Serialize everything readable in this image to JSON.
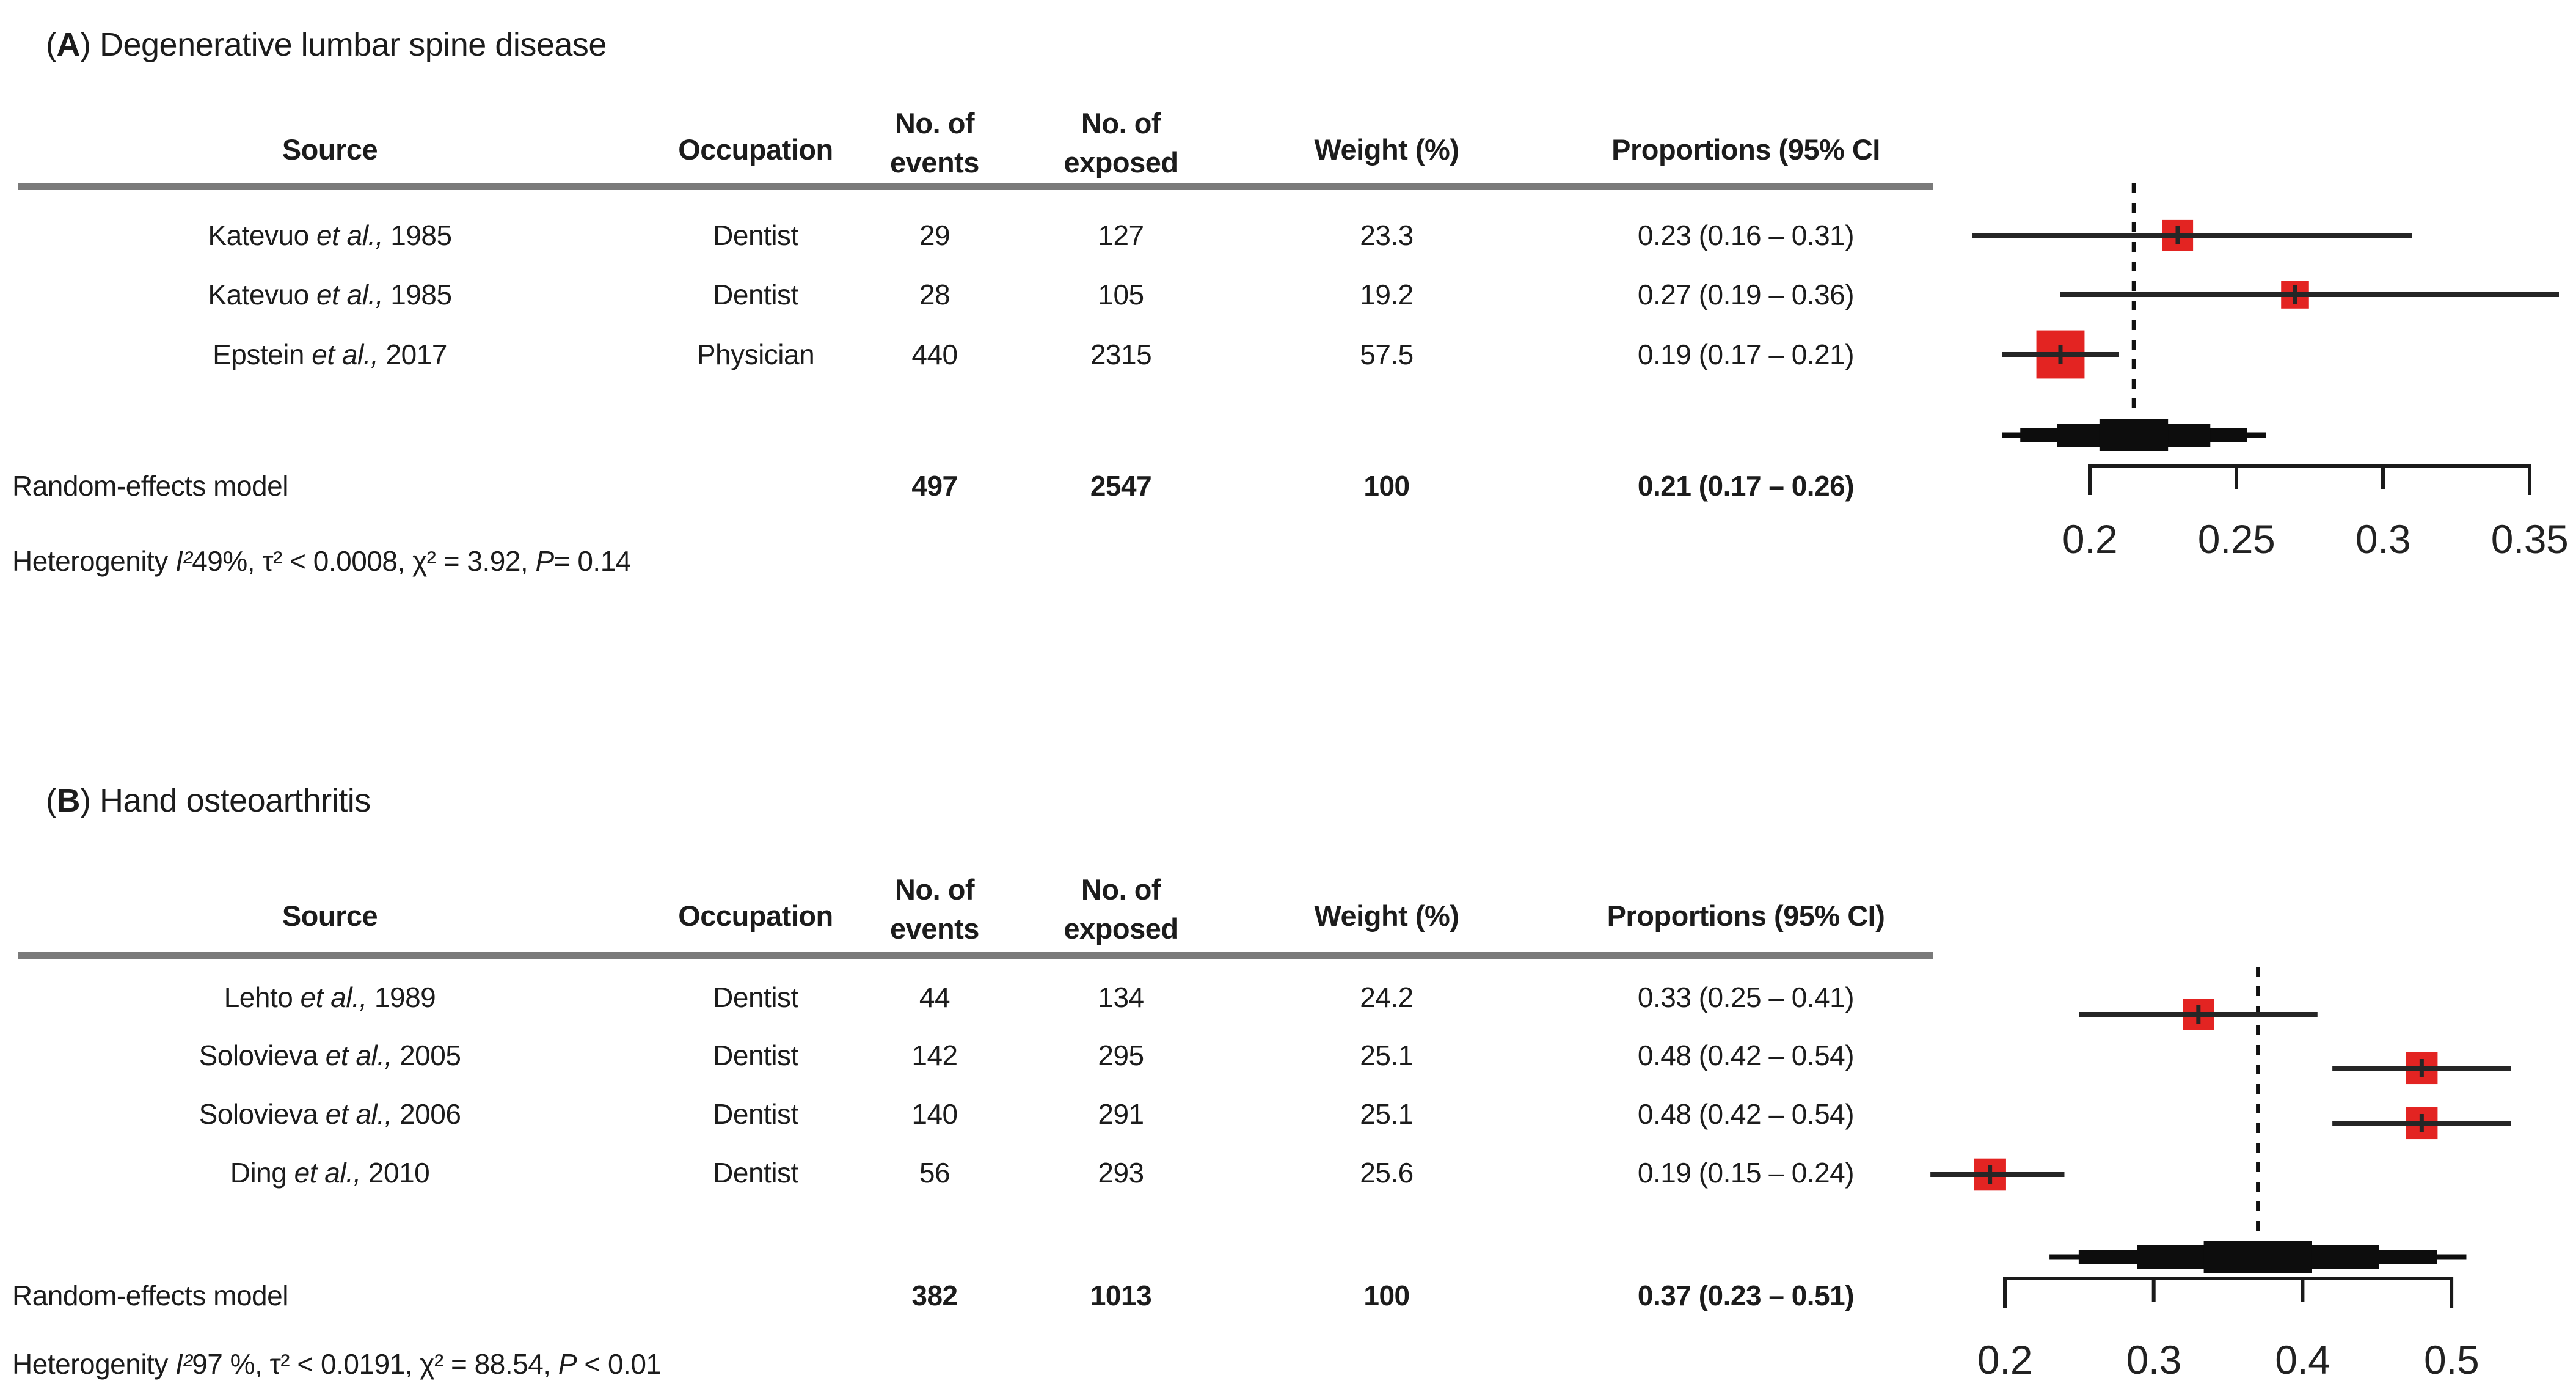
{
  "colors": {
    "marker_red": "#e32422",
    "line_dark": "#262626",
    "diamond_black": "#0d0d0d",
    "rule_gray": "#7a7a7a",
    "text": "#1c1c1c"
  },
  "panels": [
    {
      "label": "A",
      "title": {
        "open": "(",
        "letter": "A",
        "rest": ") Degenerative lumbar spine disease"
      },
      "columns": {
        "source": "Source",
        "occupation": "Occupation",
        "events": [
          "No. of",
          "events"
        ],
        "exposed": [
          "No. of",
          "exposed"
        ],
        "weight": "Weight (%)",
        "proportions": "Proportions (95% CI"
      },
      "rows": [
        {
          "source": {
            "pre": "Katevuo ",
            "etal": "et al.,",
            "post": " 1985"
          },
          "occupation": "Dentist",
          "events": "29",
          "exposed": "127",
          "weight": "23.3",
          "proportion": "0.23 (0.16 – 0.31)"
        },
        {
          "source": {
            "pre": "Katevuo ",
            "etal": "et al.,",
            "post": " 1985"
          },
          "occupation": "Dentist",
          "events": "28",
          "exposed": "105",
          "weight": "19.2",
          "proportion": "0.27 (0.19 – 0.36)"
        },
        {
          "source": {
            "pre": "Epstein ",
            "etal": "et al.,",
            "post": " 2017"
          },
          "occupation": "Physician",
          "events": "440",
          "exposed": "2315",
          "weight": "57.5",
          "proportion": "0.19 (0.17 – 0.21)"
        }
      ],
      "summary": {
        "label": "Random-effects model",
        "events": "497",
        "exposed": "2547",
        "weight": "100",
        "proportion": "0.21 (0.17 – 0.26)"
      },
      "heterogeneity": {
        "prefix": "Heterogenity ",
        "i2": "I²",
        "mid": "49%, τ² < 0.0008, χ² = 3.92, ",
        "p": "P",
        "tail": "= 0.14"
      }
    },
    {
      "label": "B",
      "title": {
        "open": "(",
        "letter": "B",
        "rest": ") Hand osteoarthritis"
      },
      "columns": {
        "source": "Source",
        "occupation": "Occupation",
        "events": [
          "No. of",
          "events"
        ],
        "exposed": [
          "No. of",
          "exposed"
        ],
        "weight": "Weight (%)",
        "proportions": "Proportions (95% CI)"
      },
      "rows": [
        {
          "source": {
            "pre": "Lehto ",
            "etal": "et al.,",
            "post": " 1989"
          },
          "occupation": "Dentist",
          "events": "44",
          "exposed": "134",
          "weight": "24.2",
          "proportion": "0.33 (0.25 – 0.41)"
        },
        {
          "source": {
            "pre": "Solovieva ",
            "etal": "et al.,",
            "post": " 2005"
          },
          "occupation": "Dentist",
          "events": "142",
          "exposed": "295",
          "weight": "25.1",
          "proportion": "0.48 (0.42 – 0.54)"
        },
        {
          "source": {
            "pre": "Solovieva ",
            "etal": "et al.,",
            "post": " 2006"
          },
          "occupation": "Dentist",
          "events": "140",
          "exposed": "291",
          "weight": "25.1",
          "proportion": "0.48 (0.42 – 0.54)"
        },
        {
          "source": {
            "pre": "Ding ",
            "etal": "et al.,",
            "post": " 2010"
          },
          "occupation": "Dentist",
          "events": "56",
          "exposed": "293",
          "weight": "25.6",
          "proportion": "0.19 (0.15 – 0.24)"
        }
      ],
      "summary": {
        "label": "Random-effects model",
        "events": "382",
        "exposed": "1013",
        "weight": "100",
        "proportion": "0.37 (0.23 – 0.51)"
      },
      "heterogeneity": {
        "prefix": "Heterogenity ",
        "i2": "I²",
        "mid": "97 %, τ² < 0.0191, χ² = 88.54, ",
        "p": "P",
        "tail": " < 0.01"
      }
    }
  ],
  "chart_data": [
    {
      "type": "forest",
      "panel": "A",
      "title": "(A) Degenerative lumbar spine disease",
      "x_ticks": [
        0.2,
        0.25,
        0.3,
        0.35
      ],
      "axis_range": [
        0.2,
        0.35
      ],
      "dashed_line_at": 0.215,
      "studies": [
        {
          "label": "Katevuo et al., 1985",
          "est": 0.23,
          "lo": 0.16,
          "hi": 0.31,
          "weight": 23.3
        },
        {
          "label": "Katevuo et al., 1985",
          "est": 0.27,
          "lo": 0.19,
          "hi": 0.36,
          "weight": 19.2
        },
        {
          "label": "Epstein et al., 2017",
          "est": 0.19,
          "lo": 0.17,
          "hi": 0.21,
          "weight": 57.5
        }
      ],
      "pooled": {
        "label": "Random-effects model",
        "est": 0.21,
        "lo": 0.17,
        "hi": 0.26
      }
    },
    {
      "type": "forest",
      "panel": "B",
      "title": "(B) Hand osteoarthritis",
      "x_ticks": [
        0.2,
        0.3,
        0.4,
        0.5
      ],
      "axis_range": [
        0.2,
        0.5
      ],
      "dashed_line_at": 0.37,
      "studies": [
        {
          "label": "Lehto et al., 1989",
          "est": 0.33,
          "lo": 0.25,
          "hi": 0.41,
          "weight": 24.2
        },
        {
          "label": "Solovieva et al., 2005",
          "est": 0.48,
          "lo": 0.42,
          "hi": 0.54,
          "weight": 25.1
        },
        {
          "label": "Solovieva et al., 2006",
          "est": 0.48,
          "lo": 0.42,
          "hi": 0.54,
          "weight": 25.1
        },
        {
          "label": "Ding et al., 2010",
          "est": 0.19,
          "lo": 0.15,
          "hi": 0.24,
          "weight": 25.6
        }
      ],
      "pooled": {
        "label": "Random-effects model",
        "est": 0.37,
        "lo": 0.23,
        "hi": 0.51
      }
    }
  ]
}
